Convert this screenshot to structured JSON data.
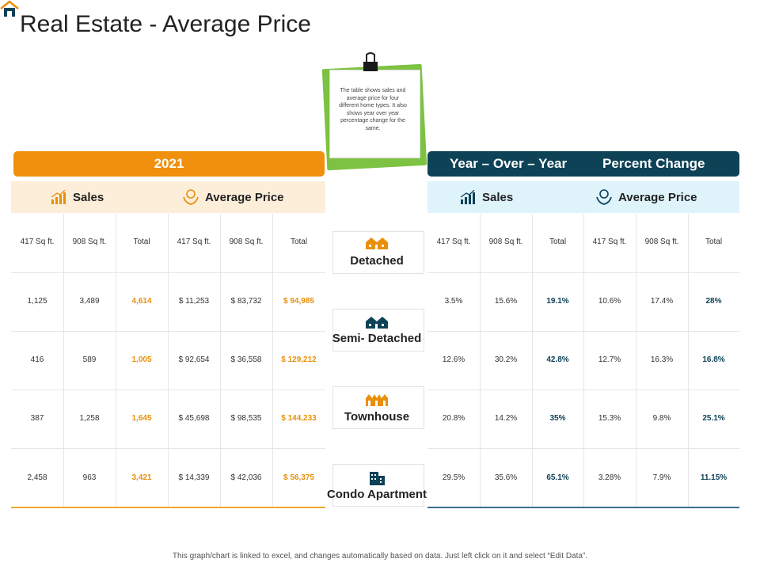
{
  "title": "Real Estate - Average Price",
  "note": "The table shows sales and average price for four different home types. It also shows year over year percentage change for the same.",
  "left_header": "2021",
  "right_header": {
    "part1": "Year – Over – Year",
    "part2": "Percent Change"
  },
  "sub_left": {
    "sales": "Sales",
    "avg": "Average Price"
  },
  "sub_right": {
    "sales": "Sales",
    "avg": "Average Price"
  },
  "col_headers": [
    "417 Sq ft.",
    "908 Sq ft.",
    "Total",
    "417 Sq ft.",
    "908 Sq ft.",
    "Total"
  ],
  "types": [
    "Detached",
    "Semi- Detached",
    "Townhouse",
    "Condo Apartment"
  ],
  "left_rows": [
    [
      "1,125",
      "3,489",
      "4,614",
      "$ 11,253",
      "$ 83,732",
      "$ 94,985"
    ],
    [
      "416",
      "589",
      "1,005",
      "$ 92,654",
      "$ 36,558",
      "$ 129,212"
    ],
    [
      "387",
      "1,258",
      "1,645",
      "$ 45,698",
      "$ 98,535",
      "$ 144,233"
    ],
    [
      "2,458",
      "963",
      "3,421",
      "$ 14,339",
      "$ 42,036",
      "$ 56,375"
    ]
  ],
  "right_rows": [
    [
      "3.5%",
      "15.6%",
      "19.1%",
      "10.6%",
      "17.4%",
      "28%"
    ],
    [
      "12.6%",
      "30.2%",
      "42.8%",
      "12.7%",
      "16.3%",
      "16.8%"
    ],
    [
      "20.8%",
      "14.2%",
      "35%",
      "15.3%",
      "9.8%",
      "25.1%"
    ],
    [
      "29.5%",
      "35.6%",
      "65.1%",
      "3.28%",
      "7.9%",
      "11.15%"
    ]
  ],
  "footer": "This graph/chart is linked to excel, and changes automatically based on data. Just left click on it and select “Edit Data”.",
  "colors": {
    "orange": "#f0900c",
    "navy": "#0e4257",
    "green": "#7dc242"
  },
  "icons": {
    "logo": "house-icon",
    "sales": "bar-growth-icon",
    "avg": "money-hand-icon",
    "clip": "binder-clip-icon"
  }
}
